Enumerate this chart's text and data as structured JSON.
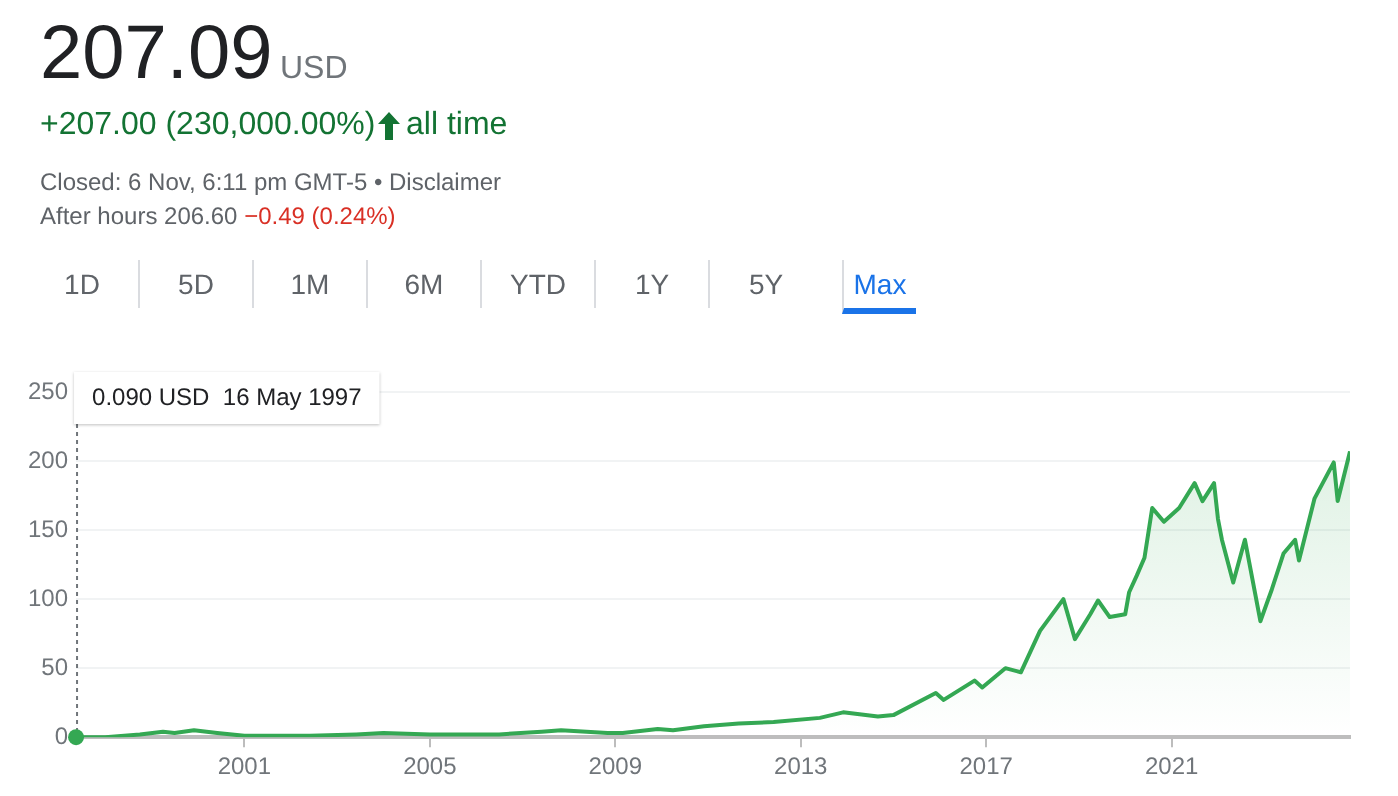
{
  "chart_data": {
    "type": "area",
    "title": "207.09",
    "annotations": [
      "USD",
      "+207.00 (230,000.00%)",
      "all time",
      "Closed: 6 Nov, 6:11 pm GMT-5 • Disclaimer",
      "After hours 206.60",
      "−0.49 (0.24%)",
      "1D",
      "5D",
      "1M",
      "6M",
      "YTD",
      "1Y",
      "5Y",
      "Max",
      "0.090 USD  16 May 1997"
    ],
    "series": [
      {
        "color": "#34a853",
        "x": [
          "1997-05-16",
          "1998-01",
          "1998-10",
          "1999-04",
          "1999-07",
          "1999-12",
          "2000-06",
          "2001-01",
          "2001-09",
          "2002-06",
          "2003-06",
          "2004-01",
          "2005-01",
          "2006-01",
          "2006-07",
          "2007-06",
          "2007-11",
          "2008-11",
          "2009-03",
          "2009-12",
          "2010-04",
          "2010-12",
          "2011-09",
          "2012-06",
          "2013-06",
          "2013-12",
          "2014-09",
          "2015-01",
          "2015-12",
          "2016-02",
          "2016-10",
          "2016-12",
          "2017-06",
          "2017-10",
          "2018-03",
          "2018-09",
          "2018-12",
          "2019-04",
          "2019-06",
          "2019-09",
          "2020-01",
          "2020-02",
          "2020-04",
          "2020-06",
          "2020-08",
          "2020-11",
          "2021-03",
          "2021-07",
          "2021-09",
          "2021-12",
          "2022-01",
          "2022-02",
          "2022-05",
          "2022-08",
          "2022-12",
          "2023-03",
          "2023-06",
          "2023-09",
          "2023-10",
          "2024-02",
          "2024-07",
          "2024-08",
          "2024-11-06"
        ],
        "values": [
          0,
          0,
          2,
          4,
          3,
          5,
          3,
          1,
          1,
          1,
          2,
          3,
          2,
          2,
          2,
          4,
          5,
          3,
          3,
          6,
          5,
          8,
          10,
          11,
          14,
          18,
          15,
          16,
          32,
          27,
          41,
          36,
          50,
          47,
          77,
          100,
          71,
          89,
          99,
          87,
          89,
          105,
          117,
          130,
          166,
          156,
          166,
          184,
          171,
          184,
          158,
          143,
          112,
          143,
          84,
          107,
          133,
          143,
          128,
          173,
          199,
          171,
          207
        ]
      }
    ],
    "xlim": [
      "1997-05-16",
      "2024-11-06"
    ],
    "xticks": [
      "2001",
      "2005",
      "2009",
      "2013",
      "2017",
      "2021"
    ],
    "ylim": [
      0,
      250
    ],
    "yticks": [
      0,
      50,
      100,
      150,
      200,
      250
    ],
    "grid": "y",
    "legend": false,
    "marker": "none",
    "line_style": "solid"
  }
}
